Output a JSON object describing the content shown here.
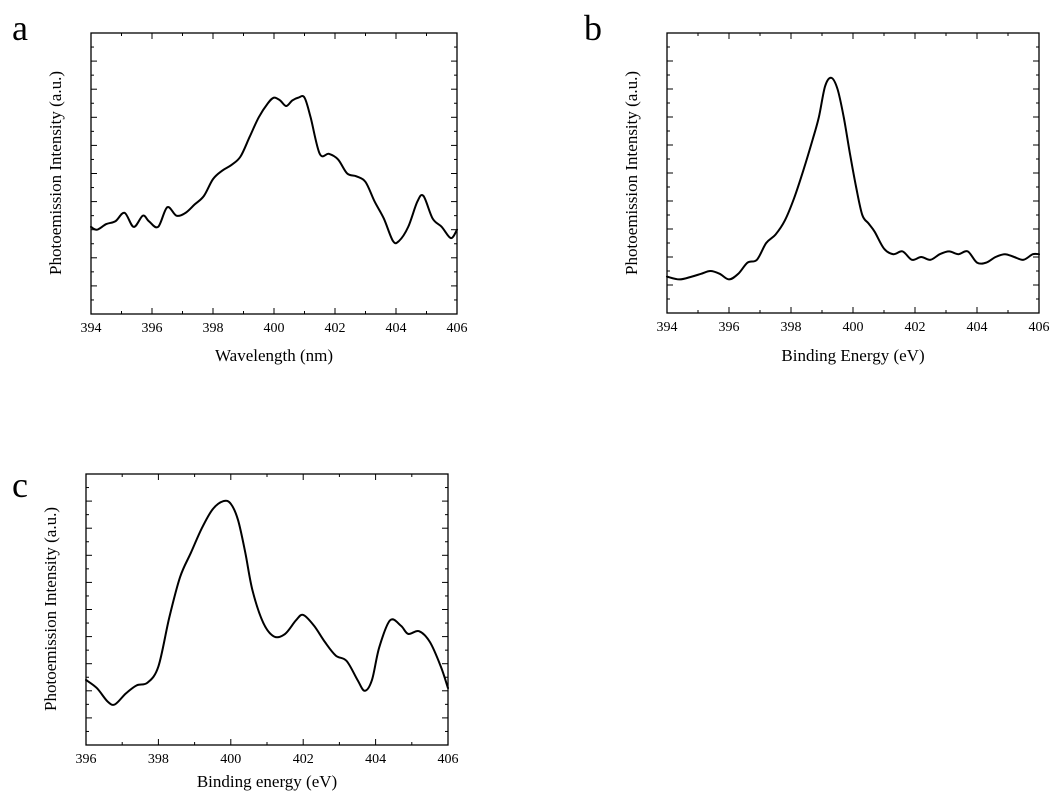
{
  "chart_data": [
    {
      "id": "a",
      "type": "line",
      "panel_label": "a",
      "xlabel": "Wavelength (nm)",
      "ylabel": "Photoemission Intensity (a.u.)",
      "xlim": [
        394,
        406
      ],
      "ylim": [
        0,
        100
      ],
      "xticks": [
        394,
        396,
        398,
        400,
        402,
        404,
        406
      ],
      "xtick_labels": [
        "394",
        "396",
        "398",
        "400",
        "402",
        "404",
        "406"
      ],
      "y_tick_labels_shown": false,
      "y_minor_ticks": 10,
      "grid": false,
      "legend": "none",
      "series": [
        {
          "x": [
            394,
            394.2,
            394.5,
            394.8,
            395.1,
            395.4,
            395.7,
            395.9,
            396.2,
            396.5,
            396.8,
            397.1,
            397.4,
            397.7,
            398.0,
            398.3,
            398.6,
            398.9,
            399.2,
            399.5,
            399.8,
            400.0,
            400.2,
            400.4,
            400.6,
            400.8,
            401.0,
            401.2,
            401.5,
            401.8,
            402.1,
            402.4,
            402.7,
            403.0,
            403.3,
            403.6,
            403.9,
            404.1,
            404.4,
            404.7,
            404.9,
            405.2,
            405.5,
            405.8,
            406
          ],
          "y": [
            31,
            30,
            32,
            33,
            36,
            31,
            35,
            33,
            31,
            38,
            35,
            36,
            39,
            42,
            48,
            51,
            53,
            56,
            63,
            70,
            75,
            77,
            76,
            74,
            76,
            77,
            77,
            70,
            57,
            57,
            55,
            50,
            49,
            47,
            40,
            34,
            26,
            26,
            31,
            40,
            42,
            34,
            31,
            27,
            30
          ]
        }
      ]
    },
    {
      "id": "b",
      "type": "line",
      "panel_label": "b",
      "xlabel": "Binding Energy (eV)",
      "ylabel": "Photoemission Intensity (a.u.)",
      "xlim": [
        394,
        406
      ],
      "ylim": [
        0,
        100
      ],
      "xticks": [
        394,
        396,
        398,
        400,
        402,
        404,
        406
      ],
      "xtick_labels": [
        "394",
        "396",
        "398",
        "400",
        "402",
        "404",
        "406"
      ],
      "y_tick_labels_shown": false,
      "y_minor_ticks": 10,
      "grid": false,
      "legend": "none",
      "series": [
        {
          "x": [
            394,
            394.4,
            394.8,
            395.1,
            395.4,
            395.7,
            396.0,
            396.3,
            396.6,
            396.9,
            397.2,
            397.5,
            397.8,
            398.1,
            398.4,
            398.7,
            398.9,
            399.1,
            399.3,
            399.5,
            399.7,
            399.9,
            400.1,
            400.3,
            400.5,
            400.7,
            401.0,
            401.3,
            401.6,
            401.9,
            402.2,
            402.5,
            402.8,
            403.1,
            403.4,
            403.7,
            404.0,
            404.3,
            404.6,
            404.9,
            405.2,
            405.5,
            405.8,
            406
          ],
          "y": [
            13,
            12,
            13,
            14,
            15,
            14,
            12,
            14,
            18,
            19,
            25,
            28,
            33,
            41,
            51,
            62,
            70,
            81,
            84,
            80,
            70,
            57,
            45,
            35,
            32,
            29,
            23,
            21,
            22,
            19,
            20,
            19,
            21,
            22,
            21,
            22,
            18,
            18,
            20,
            21,
            20,
            19,
            21,
            21
          ]
        }
      ]
    },
    {
      "id": "c",
      "type": "line",
      "panel_label": "c",
      "xlabel": "Binding energy (eV)",
      "ylabel": "Photoemission Intensity (a.u.)",
      "xlim": [
        396,
        406
      ],
      "ylim": [
        0,
        100
      ],
      "xticks": [
        396,
        398,
        400,
        402,
        404,
        406
      ],
      "xtick_labels": [
        "396",
        "398",
        "400",
        "402",
        "404",
        "406"
      ],
      "y_tick_labels_shown": false,
      "y_minor_ticks": 10,
      "grid": false,
      "legend": "none",
      "series": [
        {
          "x": [
            396,
            396.3,
            396.6,
            396.8,
            397.1,
            397.4,
            397.7,
            398.0,
            398.3,
            398.6,
            398.9,
            399.2,
            399.5,
            399.8,
            400.0,
            400.2,
            400.4,
            400.6,
            400.9,
            401.2,
            401.5,
            401.8,
            402.0,
            402.3,
            402.6,
            402.9,
            403.2,
            403.5,
            403.7,
            403.9,
            404.1,
            404.4,
            404.7,
            404.9,
            405.2,
            405.5,
            405.8,
            406
          ],
          "y": [
            24,
            21,
            16,
            15,
            19,
            22,
            23,
            29,
            47,
            62,
            71,
            80,
            87,
            90,
            89,
            83,
            71,
            57,
            45,
            40,
            41,
            46,
            48,
            44,
            38,
            33,
            31,
            24,
            20,
            24,
            36,
            46,
            44,
            41,
            42,
            38,
            29,
            21
          ]
        }
      ]
    }
  ]
}
